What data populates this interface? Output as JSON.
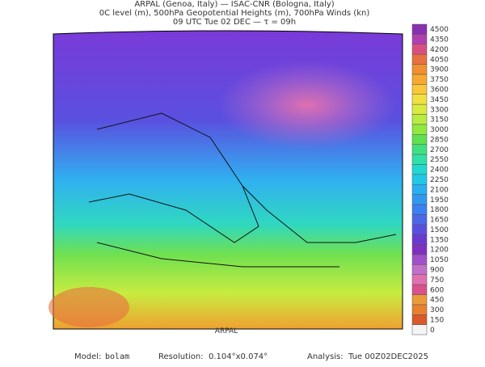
{
  "header": {
    "lines": [
      "ARPAL (Genoa, Italy)  —  ISAC-CNR (Bologna, Italy)",
      "0C level (m), 500hPa Geopotential Heights (m), 700hPa Winds (kn)",
      "09 UTC Tue 02 DEC  —  τ = 09h"
    ]
  },
  "colorbar": {
    "ticks": [
      0,
      150,
      300,
      450,
      600,
      750,
      900,
      1050,
      1200,
      1350,
      1500,
      1650,
      1800,
      1950,
      2100,
      2250,
      2400,
      2550,
      2700,
      2850,
      3000,
      3150,
      3300,
      3450,
      3600,
      3750,
      3900,
      4050,
      4200,
      4350,
      4500
    ],
    "colors": [
      "#f4f4f4",
      "#d85a2a",
      "#e8802e",
      "#ec9a3a",
      "#d8508c",
      "#e070b0",
      "#c070c8",
      "#a050c8",
      "#8030c0",
      "#6a3ad0",
      "#5a50e0",
      "#4a68e8",
      "#3a80f0",
      "#3098f0",
      "#28b0f0",
      "#20c8e8",
      "#20d8d0",
      "#30e0a8",
      "#40e080",
      "#60e050",
      "#90e840",
      "#b8ec40",
      "#d8ec40",
      "#f0e040",
      "#f8c838",
      "#f8a830",
      "#f09030",
      "#e87040",
      "#d85080",
      "#b040b0",
      "#8830b0"
    ]
  },
  "watermark": "ARPAL",
  "footer": {
    "model_label": "Model:",
    "model": "bolam",
    "resolution_label": "Resolution:",
    "resolution": "0.104°x0.074°",
    "analysis_label": "Analysis:",
    "analysis": "Tue 00Z02DEC2025"
  }
}
